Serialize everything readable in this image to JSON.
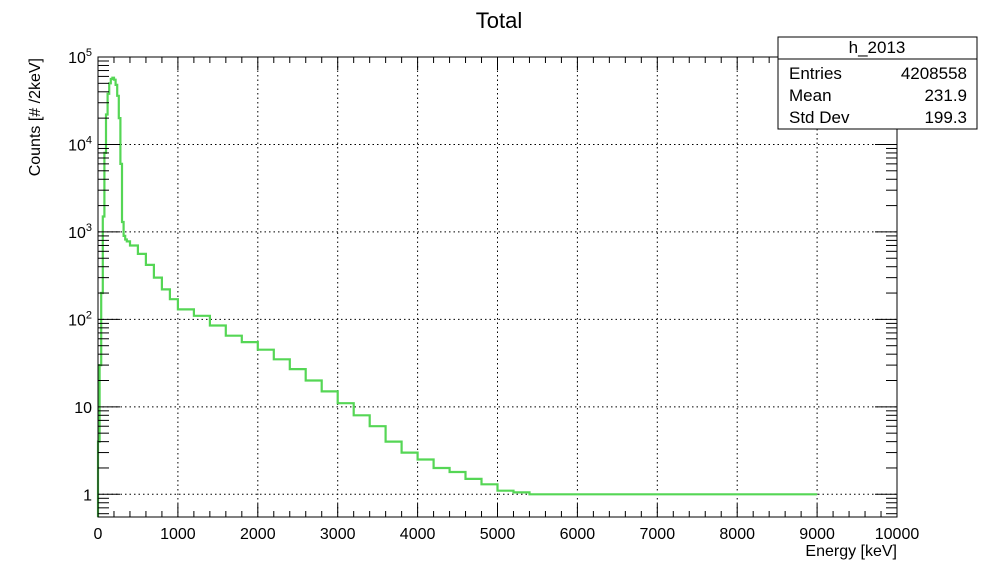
{
  "chart_data": {
    "type": "line",
    "title": "Total",
    "xlabel": "Energy [keV]",
    "ylabel": "Counts [# /2keV]",
    "xlim": [
      0,
      10000
    ],
    "ylim": [
      0.55,
      100000
    ],
    "yscale": "log",
    "grid": true,
    "color": "#55d655",
    "x_ticks": [
      "0",
      "1000",
      "2000",
      "3000",
      "4000",
      "5000",
      "6000",
      "7000",
      "8000",
      "9000",
      "10000"
    ],
    "y_ticks": [
      {
        "value": 1,
        "base": "1",
        "exp": ""
      },
      {
        "value": 10,
        "base": "10",
        "exp": ""
      },
      {
        "value": 100,
        "base": "10",
        "exp": "2"
      },
      {
        "value": 1000,
        "base": "10",
        "exp": "3"
      },
      {
        "value": 10000,
        "base": "10",
        "exp": "4"
      },
      {
        "value": 100000,
        "base": "10",
        "exp": "5"
      }
    ],
    "series": [
      {
        "x": [
          0,
          20,
          40,
          60,
          80,
          100,
          120,
          140,
          160,
          180,
          200,
          220,
          240,
          260,
          280,
          300,
          320,
          340,
          360,
          400,
          500,
          600,
          700,
          800,
          900,
          1000,
          1200,
          1400,
          1600,
          1800,
          2000,
          2200,
          2400,
          2600,
          2800,
          3000,
          3200,
          3400,
          3600,
          3800,
          4000,
          4200,
          4400,
          4600,
          4800,
          5000,
          5200,
          5400,
          5600,
          5800,
          6000,
          6200,
          6400,
          6600,
          6800,
          7000,
          7200,
          7400,
          8600,
          8800,
          9000
        ],
        "y": [
          4,
          30,
          200,
          1500,
          8000,
          22000,
          38000,
          50000,
          56000,
          58000,
          55000,
          48000,
          36000,
          20000,
          6000,
          1300,
          900,
          820,
          780,
          700,
          560,
          420,
          300,
          220,
          170,
          130,
          110,
          85,
          65,
          55,
          45,
          35,
          27,
          20,
          15,
          11,
          8,
          6,
          4,
          3,
          2.5,
          2,
          1.8,
          1.5,
          1.3,
          1.1,
          1.05,
          1,
          1,
          1,
          1,
          1,
          1,
          1,
          1,
          1,
          1,
          1,
          1,
          1,
          1
        ]
      }
    ]
  },
  "stats": {
    "name": "h_2013",
    "rows": [
      {
        "label": "Entries",
        "value": "4208558"
      },
      {
        "label": "Mean",
        "value": "231.9"
      },
      {
        "label": "Std Dev",
        "value": "199.3"
      }
    ]
  }
}
